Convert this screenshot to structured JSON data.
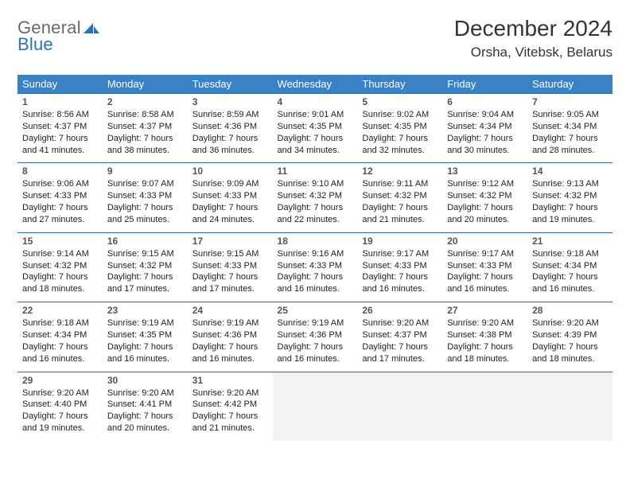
{
  "brand": {
    "text1": "General",
    "text2": "Blue"
  },
  "title": "December 2024",
  "location": "Orsha, Vitebsk, Belarus",
  "colors": {
    "header_bg": "#3a82c4",
    "header_text": "#ffffff",
    "cell_border": "#2d6aa8",
    "brand_gray": "#6a6a6a",
    "brand_blue": "#2d72b2",
    "empty_bg": "#f2f2f2"
  },
  "weekdays": [
    "Sunday",
    "Monday",
    "Tuesday",
    "Wednesday",
    "Thursday",
    "Friday",
    "Saturday"
  ],
  "weeks": [
    [
      {
        "n": "1",
        "sr": "Sunrise: 8:56 AM",
        "ss": "Sunset: 4:37 PM",
        "d1": "Daylight: 7 hours",
        "d2": "and 41 minutes."
      },
      {
        "n": "2",
        "sr": "Sunrise: 8:58 AM",
        "ss": "Sunset: 4:37 PM",
        "d1": "Daylight: 7 hours",
        "d2": "and 38 minutes."
      },
      {
        "n": "3",
        "sr": "Sunrise: 8:59 AM",
        "ss": "Sunset: 4:36 PM",
        "d1": "Daylight: 7 hours",
        "d2": "and 36 minutes."
      },
      {
        "n": "4",
        "sr": "Sunrise: 9:01 AM",
        "ss": "Sunset: 4:35 PM",
        "d1": "Daylight: 7 hours",
        "d2": "and 34 minutes."
      },
      {
        "n": "5",
        "sr": "Sunrise: 9:02 AM",
        "ss": "Sunset: 4:35 PM",
        "d1": "Daylight: 7 hours",
        "d2": "and 32 minutes."
      },
      {
        "n": "6",
        "sr": "Sunrise: 9:04 AM",
        "ss": "Sunset: 4:34 PM",
        "d1": "Daylight: 7 hours",
        "d2": "and 30 minutes."
      },
      {
        "n": "7",
        "sr": "Sunrise: 9:05 AM",
        "ss": "Sunset: 4:34 PM",
        "d1": "Daylight: 7 hours",
        "d2": "and 28 minutes."
      }
    ],
    [
      {
        "n": "8",
        "sr": "Sunrise: 9:06 AM",
        "ss": "Sunset: 4:33 PM",
        "d1": "Daylight: 7 hours",
        "d2": "and 27 minutes."
      },
      {
        "n": "9",
        "sr": "Sunrise: 9:07 AM",
        "ss": "Sunset: 4:33 PM",
        "d1": "Daylight: 7 hours",
        "d2": "and 25 minutes."
      },
      {
        "n": "10",
        "sr": "Sunrise: 9:09 AM",
        "ss": "Sunset: 4:33 PM",
        "d1": "Daylight: 7 hours",
        "d2": "and 24 minutes."
      },
      {
        "n": "11",
        "sr": "Sunrise: 9:10 AM",
        "ss": "Sunset: 4:32 PM",
        "d1": "Daylight: 7 hours",
        "d2": "and 22 minutes."
      },
      {
        "n": "12",
        "sr": "Sunrise: 9:11 AM",
        "ss": "Sunset: 4:32 PM",
        "d1": "Daylight: 7 hours",
        "d2": "and 21 minutes."
      },
      {
        "n": "13",
        "sr": "Sunrise: 9:12 AM",
        "ss": "Sunset: 4:32 PM",
        "d1": "Daylight: 7 hours",
        "d2": "and 20 minutes."
      },
      {
        "n": "14",
        "sr": "Sunrise: 9:13 AM",
        "ss": "Sunset: 4:32 PM",
        "d1": "Daylight: 7 hours",
        "d2": "and 19 minutes."
      }
    ],
    [
      {
        "n": "15",
        "sr": "Sunrise: 9:14 AM",
        "ss": "Sunset: 4:32 PM",
        "d1": "Daylight: 7 hours",
        "d2": "and 18 minutes."
      },
      {
        "n": "16",
        "sr": "Sunrise: 9:15 AM",
        "ss": "Sunset: 4:32 PM",
        "d1": "Daylight: 7 hours",
        "d2": "and 17 minutes."
      },
      {
        "n": "17",
        "sr": "Sunrise: 9:15 AM",
        "ss": "Sunset: 4:33 PM",
        "d1": "Daylight: 7 hours",
        "d2": "and 17 minutes."
      },
      {
        "n": "18",
        "sr": "Sunrise: 9:16 AM",
        "ss": "Sunset: 4:33 PM",
        "d1": "Daylight: 7 hours",
        "d2": "and 16 minutes."
      },
      {
        "n": "19",
        "sr": "Sunrise: 9:17 AM",
        "ss": "Sunset: 4:33 PM",
        "d1": "Daylight: 7 hours",
        "d2": "and 16 minutes."
      },
      {
        "n": "20",
        "sr": "Sunrise: 9:17 AM",
        "ss": "Sunset: 4:33 PM",
        "d1": "Daylight: 7 hours",
        "d2": "and 16 minutes."
      },
      {
        "n": "21",
        "sr": "Sunrise: 9:18 AM",
        "ss": "Sunset: 4:34 PM",
        "d1": "Daylight: 7 hours",
        "d2": "and 16 minutes."
      }
    ],
    [
      {
        "n": "22",
        "sr": "Sunrise: 9:18 AM",
        "ss": "Sunset: 4:34 PM",
        "d1": "Daylight: 7 hours",
        "d2": "and 16 minutes."
      },
      {
        "n": "23",
        "sr": "Sunrise: 9:19 AM",
        "ss": "Sunset: 4:35 PM",
        "d1": "Daylight: 7 hours",
        "d2": "and 16 minutes."
      },
      {
        "n": "24",
        "sr": "Sunrise: 9:19 AM",
        "ss": "Sunset: 4:36 PM",
        "d1": "Daylight: 7 hours",
        "d2": "and 16 minutes."
      },
      {
        "n": "25",
        "sr": "Sunrise: 9:19 AM",
        "ss": "Sunset: 4:36 PM",
        "d1": "Daylight: 7 hours",
        "d2": "and 16 minutes."
      },
      {
        "n": "26",
        "sr": "Sunrise: 9:20 AM",
        "ss": "Sunset: 4:37 PM",
        "d1": "Daylight: 7 hours",
        "d2": "and 17 minutes."
      },
      {
        "n": "27",
        "sr": "Sunrise: 9:20 AM",
        "ss": "Sunset: 4:38 PM",
        "d1": "Daylight: 7 hours",
        "d2": "and 18 minutes."
      },
      {
        "n": "28",
        "sr": "Sunrise: 9:20 AM",
        "ss": "Sunset: 4:39 PM",
        "d1": "Daylight: 7 hours",
        "d2": "and 18 minutes."
      }
    ],
    [
      {
        "n": "29",
        "sr": "Sunrise: 9:20 AM",
        "ss": "Sunset: 4:40 PM",
        "d1": "Daylight: 7 hours",
        "d2": "and 19 minutes."
      },
      {
        "n": "30",
        "sr": "Sunrise: 9:20 AM",
        "ss": "Sunset: 4:41 PM",
        "d1": "Daylight: 7 hours",
        "d2": "and 20 minutes."
      },
      {
        "n": "31",
        "sr": "Sunrise: 9:20 AM",
        "ss": "Sunset: 4:42 PM",
        "d1": "Daylight: 7 hours",
        "d2": "and 21 minutes."
      },
      null,
      null,
      null,
      null
    ]
  ]
}
